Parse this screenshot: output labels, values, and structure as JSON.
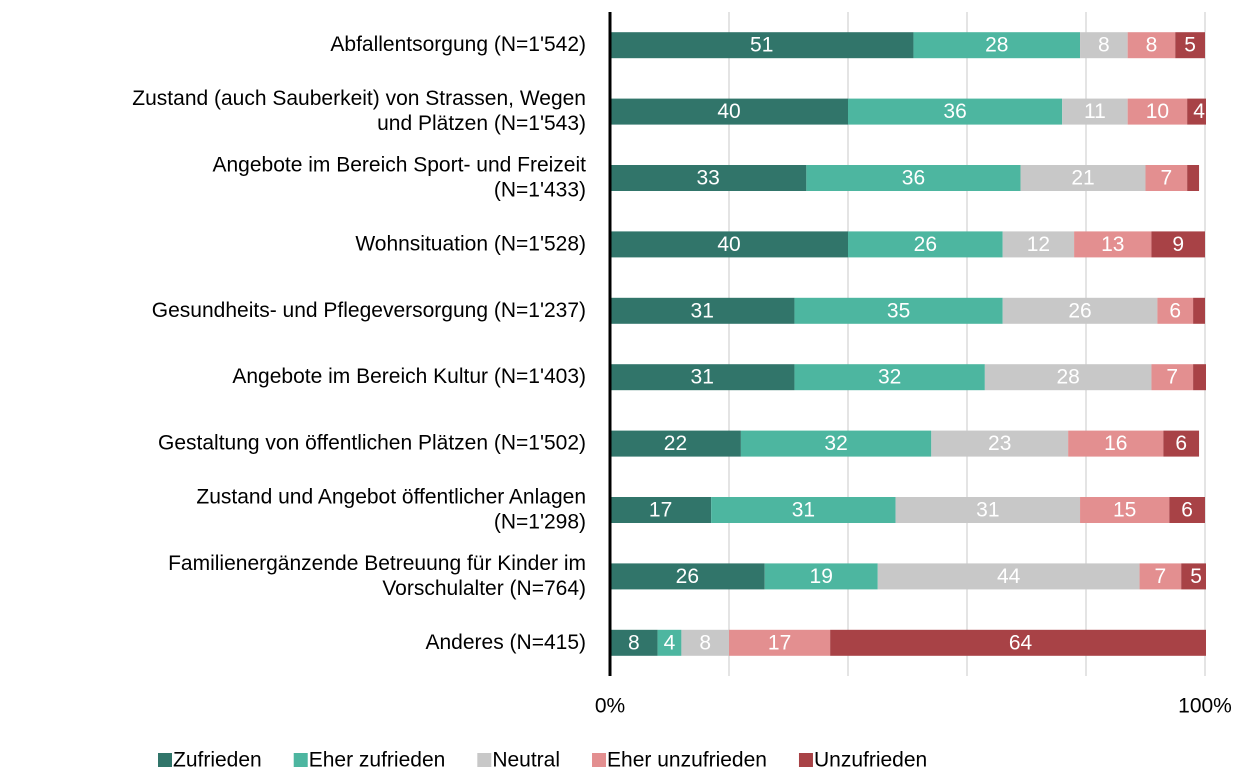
{
  "chart_data": {
    "type": "bar",
    "orientation": "horizontal",
    "stacked": true,
    "categories": [
      "Abfallentsorgung (N=1'542)",
      "Zustand (auch Sauberkeit) von Strassen, Wegen\nund Plätzen (N=1'543)",
      "Angebote im Bereich Sport- und Freizeit\n(N=1'433)",
      "Wohnsituation (N=1'528)",
      "Gesundheits- und Pflegeversorgung (N=1'237)",
      "Angebote im Bereich Kultur (N=1'403)",
      "Gestaltung von öffentlichen Plätzen (N=1'502)",
      "Zustand und Angebot öffentlicher Anlagen\n(N=1'298)",
      "Familienergänzende Betreuung für Kinder im\nVorschulalter (N=764)",
      "Anderes (N=415)"
    ],
    "series": [
      {
        "name": "Zufrieden",
        "color": "#31756a",
        "values": [
          51,
          40,
          33,
          40,
          31,
          31,
          22,
          17,
          26,
          8
        ]
      },
      {
        "name": "Eher zufrieden",
        "color": "#4db6a0",
        "values": [
          28,
          36,
          36,
          26,
          35,
          32,
          32,
          31,
          19,
          4
        ]
      },
      {
        "name": "Neutral",
        "color": "#c8c8c8",
        "values": [
          8,
          11,
          21,
          12,
          26,
          28,
          23,
          31,
          44,
          8
        ]
      },
      {
        "name": "Eher unzufrieden",
        "color": "#e38f90",
        "values": [
          8,
          10,
          7,
          13,
          6,
          7,
          16,
          15,
          7,
          17
        ]
      },
      {
        "name": "Unzufrieden",
        "color": "#a84246",
        "values": [
          5,
          4,
          2,
          9,
          2,
          3,
          6,
          6,
          5,
          64
        ]
      }
    ],
    "xlim": [
      0,
      100
    ],
    "xticks": [
      {
        "value": 0,
        "label": "0%"
      },
      {
        "value": 100,
        "label": "100%"
      }
    ],
    "xgrid": [
      20,
      40,
      60,
      80,
      100
    ],
    "grid": true,
    "legend": "bottom"
  }
}
